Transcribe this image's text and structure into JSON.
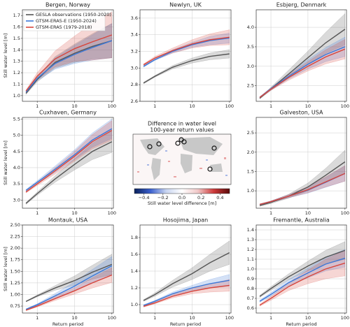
{
  "chart_data": [
    {
      "type": "line",
      "title": "Bergen, Norway",
      "y_label": "Still water level [m]",
      "xscale": "log",
      "xlim": [
        0.4,
        110
      ],
      "xticks": [
        1,
        10,
        100
      ],
      "ylim": [
        0.95,
        1.75
      ],
      "yticks": [
        {
          "value": 1,
          "label": "1.0"
        },
        1.1,
        1.2,
        1.3,
        1.4,
        1.5,
        1.6,
        1.7
      ],
      "grid": true,
      "legend": "upper left",
      "x": [
        0.5,
        1,
        3,
        10,
        30,
        100
      ],
      "series": [
        {
          "name": "GESLA observations (1950-2020)",
          "color": "#555555",
          "values": [
            1.02,
            1.14,
            1.29,
            1.37,
            1.43,
            1.48
          ],
          "lower": [
            1.01,
            1.12,
            1.24,
            1.29,
            1.32,
            1.33
          ],
          "upper": [
            1.03,
            1.16,
            1.34,
            1.45,
            1.54,
            1.63
          ]
        },
        {
          "name": "GTSM-ERA5-E (1950-2024)",
          "color": "#3b78d8",
          "values": [
            1.03,
            1.15,
            1.28,
            1.36,
            1.42,
            1.48
          ],
          "lower": [
            1.02,
            1.13,
            1.23,
            1.28,
            1.31,
            1.33
          ],
          "upper": [
            1.04,
            1.17,
            1.33,
            1.44,
            1.53,
            1.63
          ]
        },
        {
          "name": "GTSM-ERA5 (1979-2018)",
          "color": "#d8453b",
          "values": [
            1.04,
            1.17,
            1.32,
            1.41,
            1.47,
            1.53
          ],
          "lower": [
            1.03,
            1.14,
            1.25,
            1.3,
            1.31,
            1.33
          ],
          "upper": [
            1.05,
            1.2,
            1.39,
            1.52,
            1.63,
            1.73
          ]
        }
      ]
    },
    {
      "type": "line",
      "title": "Newlyn, UK",
      "xscale": "log",
      "xlim": [
        0.4,
        110
      ],
      "xticks": [
        1,
        10,
        100
      ],
      "ylim": [
        2.6,
        3.7
      ],
      "yticks": [
        2.6,
        2.8,
        {
          "value": 3,
          "label": "3.0"
        },
        3.2,
        3.4,
        3.6
      ],
      "grid": true,
      "x": [
        0.5,
        1,
        3,
        10,
        30,
        100
      ],
      "series": [
        {
          "color": "#555555",
          "values": [
            2.82,
            2.9,
            3.01,
            3.09,
            3.14,
            3.17
          ],
          "lower": [
            2.81,
            2.89,
            2.99,
            3.06,
            3.1,
            3.12
          ],
          "upper": [
            2.83,
            2.91,
            3.03,
            3.12,
            3.18,
            3.22
          ]
        },
        {
          "color": "#3b78d8",
          "values": [
            3.02,
            3.1,
            3.2,
            3.28,
            3.33,
            3.36
          ],
          "lower": [
            3.01,
            3.09,
            3.18,
            3.25,
            3.28,
            3.3
          ],
          "upper": [
            3.03,
            3.11,
            3.22,
            3.31,
            3.38,
            3.42
          ]
        },
        {
          "color": "#d8453b",
          "values": [
            3.04,
            3.12,
            3.21,
            3.29,
            3.34,
            3.37
          ],
          "lower": [
            3.03,
            3.1,
            3.18,
            3.24,
            3.27,
            3.28
          ],
          "upper": [
            3.05,
            3.14,
            3.24,
            3.34,
            3.41,
            3.46
          ]
        }
      ]
    },
    {
      "type": "line",
      "title": "Esbjerg, Denmark",
      "xscale": "log",
      "xlim": [
        0.4,
        110
      ],
      "xticks": [
        1,
        10,
        100
      ],
      "ylim": [
        2.1,
        4.45
      ],
      "yticks": [
        2.5,
        {
          "value": 3,
          "label": "3.0"
        },
        3.5,
        {
          "value": 4,
          "label": "4.0"
        }
      ],
      "grid": true,
      "x": [
        0.5,
        1,
        3,
        10,
        30,
        100
      ],
      "series": [
        {
          "color": "#555555",
          "values": [
            2.18,
            2.42,
            2.8,
            3.22,
            3.6,
            3.95
          ],
          "lower": [
            2.16,
            2.38,
            2.7,
            3.05,
            3.33,
            3.55
          ],
          "upper": [
            2.2,
            2.46,
            2.9,
            3.39,
            3.87,
            4.35
          ]
        },
        {
          "color": "#3b78d8",
          "values": [
            2.2,
            2.42,
            2.74,
            3.05,
            3.3,
            3.5
          ],
          "lower": [
            2.18,
            2.39,
            2.67,
            2.93,
            3.12,
            3.25
          ],
          "upper": [
            2.22,
            2.45,
            2.81,
            3.17,
            3.48,
            3.75
          ]
        },
        {
          "color": "#d8453b",
          "values": [
            2.2,
            2.41,
            2.71,
            3.0,
            3.24,
            3.44
          ],
          "lower": [
            2.18,
            2.38,
            2.64,
            2.88,
            3.06,
            3.19
          ],
          "upper": [
            2.22,
            2.44,
            2.78,
            3.12,
            3.42,
            3.69
          ]
        }
      ]
    },
    {
      "type": "line",
      "title": "Cuxhaven, Germany",
      "y_label": "Still water level [m]",
      "xscale": "log",
      "xlim": [
        0.4,
        110
      ],
      "xticks": [
        1,
        10,
        100
      ],
      "ylim": [
        2.75,
        5.55
      ],
      "yticks": [
        {
          "value": 3,
          "label": "3.0"
        },
        3.5,
        {
          "value": 4,
          "label": "4.0"
        },
        4.5,
        {
          "value": 5,
          "label": "5.0"
        },
        5.5
      ],
      "grid": true,
      "x": [
        0.5,
        1,
        3,
        10,
        30,
        100
      ],
      "series": [
        {
          "color": "#555555",
          "values": [
            2.9,
            3.2,
            3.65,
            4.1,
            4.5,
            4.8
          ],
          "lower": [
            2.87,
            3.15,
            3.55,
            3.93,
            4.25,
            4.47
          ],
          "upper": [
            2.93,
            3.25,
            3.75,
            4.27,
            4.75,
            5.13
          ]
        },
        {
          "color": "#3b78d8",
          "values": [
            3.3,
            3.55,
            3.95,
            4.4,
            4.85,
            5.2
          ],
          "lower": [
            3.27,
            3.5,
            3.85,
            4.25,
            4.63,
            4.9
          ],
          "upper": [
            3.33,
            3.6,
            4.05,
            4.55,
            5.07,
            5.5
          ]
        },
        {
          "color": "#d8453b",
          "values": [
            3.25,
            3.5,
            3.9,
            4.35,
            4.8,
            5.15
          ],
          "lower": [
            3.22,
            3.45,
            3.8,
            4.2,
            4.58,
            4.85
          ],
          "upper": [
            3.28,
            3.55,
            4.0,
            4.5,
            5.02,
            5.45
          ]
        }
      ]
    },
    {
      "type": "map",
      "title": "Difference in water level",
      "subtitle": "100-year return values",
      "colorbar_label": "Still water level difference [m]",
      "clim": [
        -0.5,
        0.5
      ],
      "colorbar_colors": [
        "#08205a",
        "#3a5fcd",
        "#c8d4f0",
        "#ffffff",
        "#f0c8c8",
        "#cd3a3a",
        "#5a0808"
      ],
      "colorbar_ticks": [
        {
          "value": -0.4,
          "label": "−0.4"
        },
        {
          "value": -0.2,
          "label": "−0.2"
        },
        {
          "value": 0,
          "label": "0.0"
        },
        {
          "value": 0.2,
          "label": "0.2"
        },
        {
          "value": 0.4,
          "label": "0.4"
        }
      ]
    },
    {
      "type": "line",
      "title": "Galveston, USA",
      "xscale": "log",
      "xlim": [
        0.4,
        110
      ],
      "xticks": [
        1,
        10,
        100
      ],
      "ylim": [
        0.55,
        2.9
      ],
      "yticks": [
        {
          "value": 1,
          "label": "1.0"
        },
        1.5,
        {
          "value": 2,
          "label": "2.0"
        },
        2.5
      ],
      "grid": true,
      "x": [
        0.5,
        1,
        3,
        10,
        30,
        100
      ],
      "series": [
        {
          "color": "#555555",
          "values": [
            0.62,
            0.7,
            0.86,
            1.1,
            1.4,
            1.75
          ],
          "lower": [
            0.6,
            0.67,
            0.81,
            1.0,
            1.22,
            1.45
          ],
          "upper": [
            0.64,
            0.73,
            0.91,
            1.2,
            1.58,
            2.05
          ]
        },
        {
          "color": "#3b78d8",
          "values": [
            0.65,
            0.72,
            0.86,
            1.02,
            1.22,
            1.45
          ],
          "lower": [
            0.64,
            0.7,
            0.82,
            0.94,
            1.09,
            1.25
          ],
          "upper": [
            0.66,
            0.74,
            0.9,
            1.1,
            1.35,
            1.65
          ]
        },
        {
          "color": "#d8453b",
          "values": [
            0.65,
            0.72,
            0.86,
            1.03,
            1.23,
            1.45
          ],
          "lower": [
            0.64,
            0.7,
            0.82,
            0.95,
            1.1,
            1.25
          ],
          "upper": [
            0.66,
            0.74,
            0.9,
            1.11,
            1.36,
            1.65
          ]
        }
      ]
    },
    {
      "type": "line",
      "title": "Montauk, USA",
      "y_label": "Still water level [m]",
      "x_label": "Return period",
      "xscale": "log",
      "xlim": [
        0.4,
        110
      ],
      "xticks": [
        1,
        10,
        100
      ],
      "ylim": [
        0.6,
        2.5
      ],
      "yticks": [
        0.75,
        {
          "value": 1,
          "label": "1.00"
        },
        1.25,
        {
          "value": 1.5,
          "label": "1.50"
        },
        1.75,
        {
          "value": 2,
          "label": "2.00"
        },
        2.25,
        {
          "value": 2.5,
          "label": "2.50"
        }
      ],
      "grid": true,
      "x": [
        0.5,
        1,
        3,
        10,
        30,
        100
      ],
      "series": [
        {
          "color": "#555555",
          "values": [
            0.85,
            0.97,
            1.14,
            1.3,
            1.48,
            1.65
          ],
          "lower": [
            0.84,
            0.95,
            1.09,
            1.2,
            1.33,
            1.43
          ],
          "upper": [
            0.86,
            0.99,
            1.19,
            1.4,
            1.63,
            1.87
          ]
        },
        {
          "color": "#3b78d8",
          "values": [
            0.68,
            0.78,
            0.97,
            1.18,
            1.4,
            1.62
          ],
          "lower": [
            0.67,
            0.76,
            0.92,
            1.09,
            1.26,
            1.42
          ],
          "upper": [
            0.69,
            0.8,
            1.02,
            1.27,
            1.54,
            1.82
          ]
        },
        {
          "color": "#d8453b",
          "values": [
            0.66,
            0.75,
            0.91,
            1.08,
            1.25,
            1.42
          ],
          "lower": [
            0.65,
            0.73,
            0.87,
            1.01,
            1.14,
            1.26
          ],
          "upper": [
            0.67,
            0.77,
            0.95,
            1.15,
            1.36,
            1.58
          ]
        }
      ]
    },
    {
      "type": "line",
      "title": "Hosojima, Japan",
      "x_label": "Return period",
      "xscale": "log",
      "xlim": [
        0.4,
        110
      ],
      "xticks": [
        1,
        10,
        100
      ],
      "ylim": [
        0.9,
        1.95
      ],
      "yticks": [
        {
          "value": 1,
          "label": "1.0"
        },
        1.2,
        1.4,
        1.6,
        1.8
      ],
      "grid": true,
      "x": [
        0.5,
        1,
        3,
        10,
        30,
        100
      ],
      "series": [
        {
          "color": "#555555",
          "values": [
            1.05,
            1.12,
            1.25,
            1.37,
            1.5,
            1.62
          ],
          "lower": [
            1.04,
            1.1,
            1.21,
            1.3,
            1.4,
            1.48
          ],
          "upper": [
            1.06,
            1.14,
            1.29,
            1.44,
            1.6,
            1.76
          ]
        },
        {
          "color": "#3b78d8",
          "values": [
            0.99,
            1.04,
            1.13,
            1.2,
            1.25,
            1.29
          ],
          "lower": [
            0.98,
            1.03,
            1.11,
            1.17,
            1.2,
            1.22
          ],
          "upper": [
            1.0,
            1.05,
            1.15,
            1.23,
            1.3,
            1.36
          ]
        },
        {
          "color": "#d8453b",
          "values": [
            0.98,
            1.02,
            1.1,
            1.16,
            1.2,
            1.23
          ],
          "lower": [
            0.97,
            1.01,
            1.08,
            1.13,
            1.15,
            1.16
          ],
          "upper": [
            0.99,
            1.03,
            1.12,
            1.19,
            1.25,
            1.3
          ]
        }
      ]
    },
    {
      "type": "line",
      "title": "Fremantle, Australia",
      "x_label": "Return period",
      "xscale": "log",
      "xlim": [
        0.4,
        110
      ],
      "xticks": [
        1,
        10,
        100
      ],
      "ylim": [
        0.55,
        1.45
      ],
      "yticks": [
        0.6,
        0.7,
        0.8,
        0.9,
        {
          "value": 1,
          "label": "1.0"
        },
        1.1,
        1.2,
        1.3,
        1.4
      ],
      "grid": true,
      "x": [
        0.5,
        1,
        3,
        10,
        30,
        100
      ],
      "series": [
        {
          "color": "#555555",
          "values": [
            0.72,
            0.8,
            0.92,
            1.03,
            1.12,
            1.19
          ],
          "lower": [
            0.71,
            0.78,
            0.89,
            0.98,
            1.05,
            1.1
          ],
          "upper": [
            0.73,
            0.82,
            0.95,
            1.08,
            1.19,
            1.28
          ]
        },
        {
          "color": "#3b78d8",
          "values": [
            0.67,
            0.74,
            0.86,
            0.96,
            1.05,
            1.11
          ],
          "lower": [
            0.66,
            0.72,
            0.83,
            0.91,
            0.98,
            1.02
          ],
          "upper": [
            0.68,
            0.76,
            0.89,
            1.01,
            1.12,
            1.2
          ]
        },
        {
          "color": "#d8453b",
          "values": [
            0.63,
            0.7,
            0.82,
            0.92,
            1.0,
            1.06
          ],
          "lower": [
            0.62,
            0.68,
            0.78,
            0.85,
            0.9,
            0.93
          ],
          "upper": [
            0.64,
            0.72,
            0.86,
            0.99,
            1.1,
            1.19
          ]
        }
      ]
    }
  ]
}
